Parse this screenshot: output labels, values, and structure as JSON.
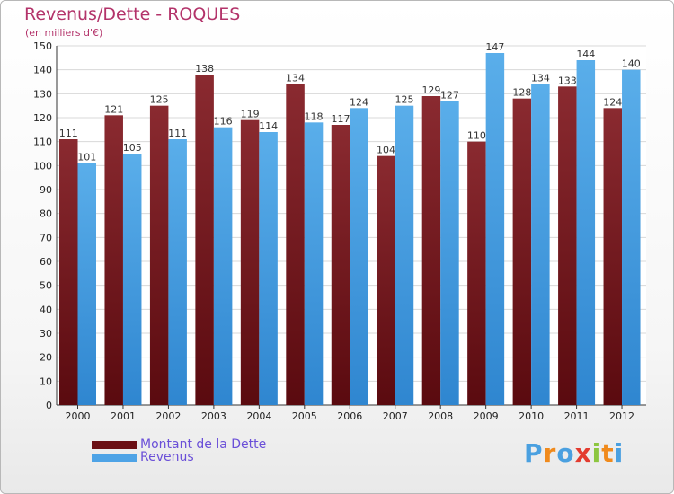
{
  "header": {
    "title": "Revenus/Dette - ROQUES",
    "subtitle": "(en milliers d'€)"
  },
  "chart_data": {
    "type": "bar",
    "title": "Revenus/Dette - ROQUES",
    "ylabel": "(en milliers d'€)",
    "xlabel": "",
    "categories": [
      "2000",
      "2001",
      "2002",
      "2003",
      "2004",
      "2005",
      "2006",
      "2007",
      "2008",
      "2009",
      "2010",
      "2011",
      "2012"
    ],
    "series": [
      {
        "name": "Montant de la Dette",
        "color": "#7a1a1f",
        "values": [
          111,
          121,
          125,
          138,
          119,
          134,
          117,
          104,
          129,
          110,
          128,
          133,
          124
        ]
      },
      {
        "name": "Revenus",
        "color": "#4ea3e6",
        "values": [
          101,
          105,
          111,
          116,
          114,
          118,
          124,
          125,
          127,
          147,
          134,
          144,
          140
        ]
      }
    ],
    "ylim": [
      0,
      150
    ],
    "yticks": [
      0,
      10,
      20,
      30,
      40,
      50,
      60,
      70,
      80,
      90,
      100,
      110,
      120,
      130,
      140,
      150
    ],
    "grid": true,
    "legend": "bottom-left"
  },
  "legend": {
    "items": [
      {
        "label": "Montant de la Dette",
        "color": "#6b0f14"
      },
      {
        "label": "Revenus",
        "color": "#4ea3e6"
      }
    ]
  },
  "logo": {
    "letters": [
      "P",
      "r",
      "o",
      "x",
      "i",
      "t",
      "i"
    ],
    "colors": [
      "#4aa0e0",
      "#f08a1c",
      "#4aa0e0",
      "#e33b2f",
      "#8cc63f",
      "#f08a1c",
      "#4aa0e0"
    ]
  }
}
